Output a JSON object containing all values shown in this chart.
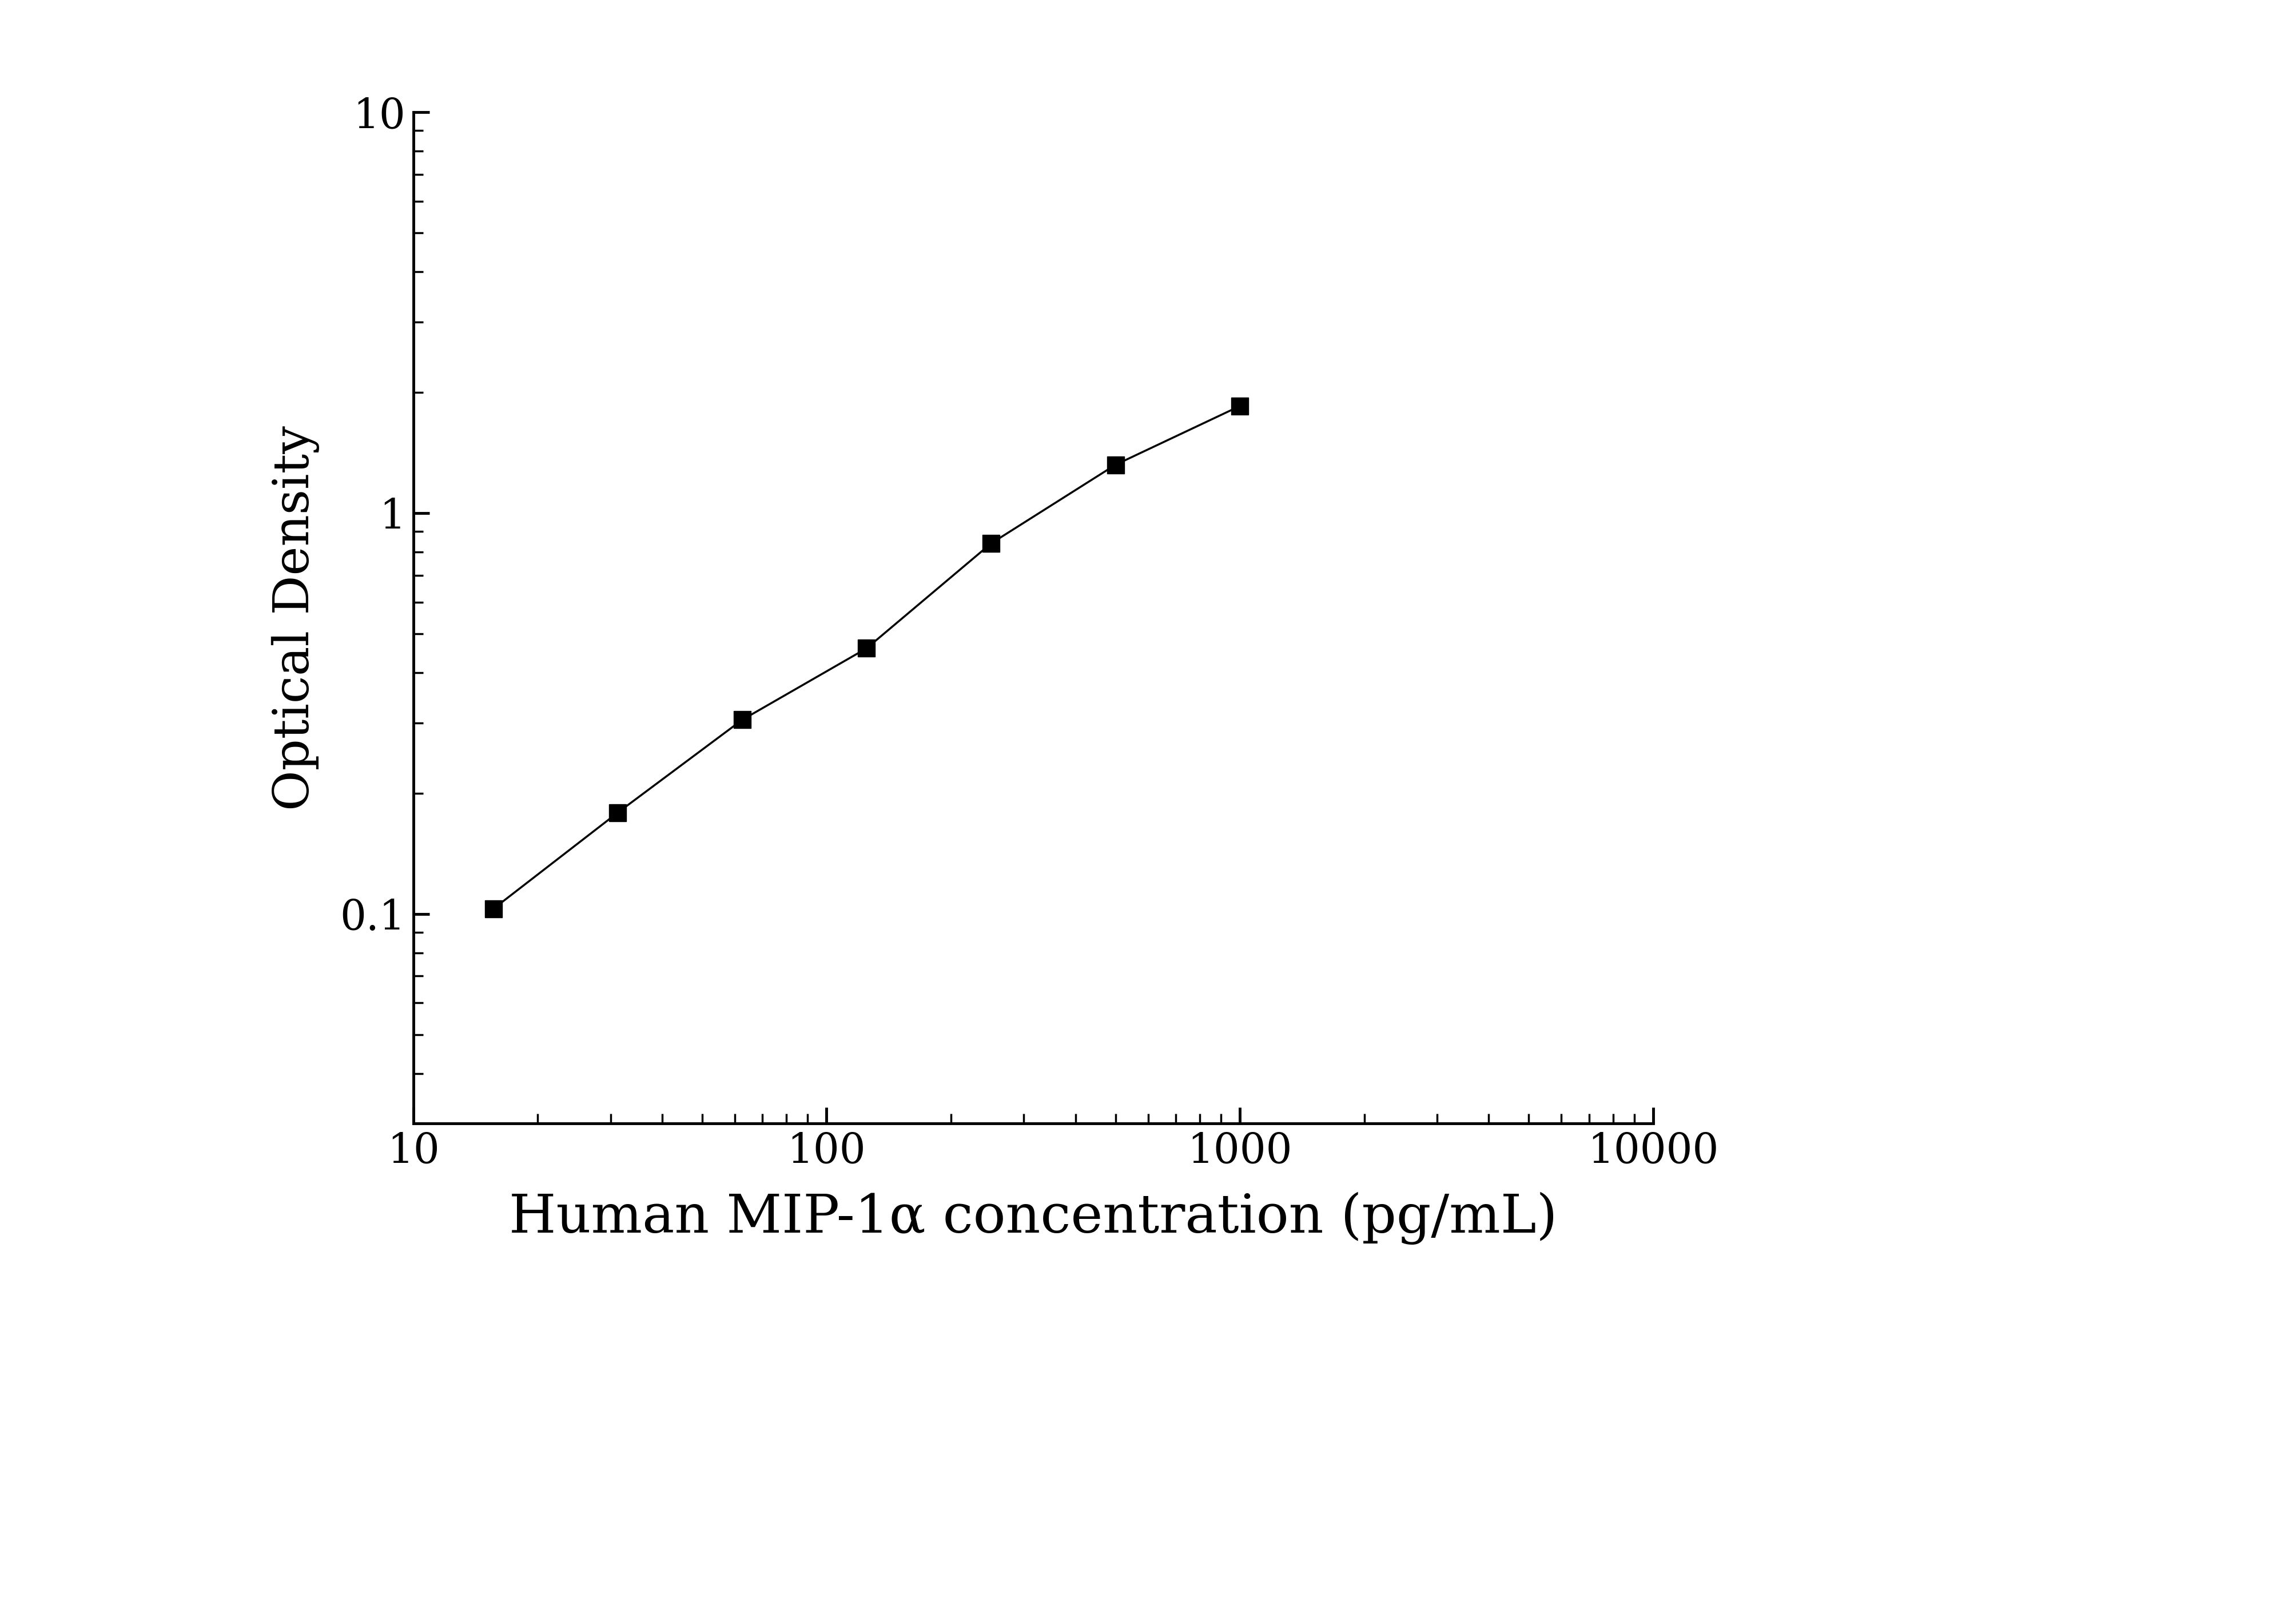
{
  "x_data": [
    15.625,
    31.25,
    62.5,
    125,
    250,
    500,
    1000
  ],
  "y_data": [
    0.103,
    0.179,
    0.305,
    0.46,
    0.84,
    1.32,
    1.85
  ],
  "xlabel": "Human MIP-1α concentration (pg/mL)",
  "ylabel": "Optical Density",
  "xlim": [
    10,
    10000
  ],
  "ylim": [
    0.03,
    10
  ],
  "background_color": "#ffffff",
  "line_color": "#000000",
  "marker_color": "#000000",
  "marker_style": "s",
  "marker_size": 22,
  "line_width": 2.5,
  "xlabel_fontsize": 68,
  "ylabel_fontsize": 62,
  "tick_fontsize": 52,
  "tick_color": "#000000",
  "axis_color": "#000000",
  "spine_linewidth": 3.5
}
